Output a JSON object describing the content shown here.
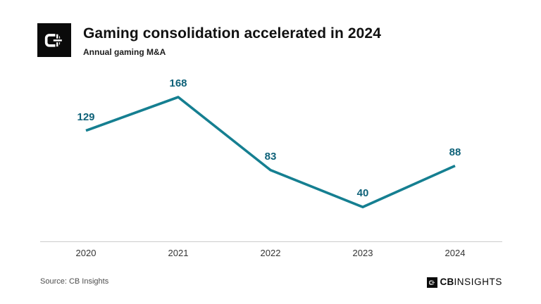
{
  "header": {
    "title": "Gaming consolidation accelerated in 2024",
    "subtitle": "Annual gaming M&A"
  },
  "chart_data": {
    "type": "line",
    "categories": [
      "2020",
      "2021",
      "2022",
      "2023",
      "2024"
    ],
    "values": [
      129,
      168,
      83,
      40,
      88
    ],
    "title": "Gaming consolidation accelerated in 2024",
    "subtitle": "Annual gaming M&A",
    "xlabel": "",
    "ylabel": "",
    "ylim": [
      0,
      200
    ],
    "grid": false,
    "legend": "none",
    "line_color": "#157f91",
    "label_color": "#0f6279",
    "axis_line_color": "#cccccc",
    "tick_color": "#333333"
  },
  "footer": {
    "source": "Source: CB Insights",
    "brand_bold": "CB",
    "brand_light": "INSIGHTS"
  }
}
